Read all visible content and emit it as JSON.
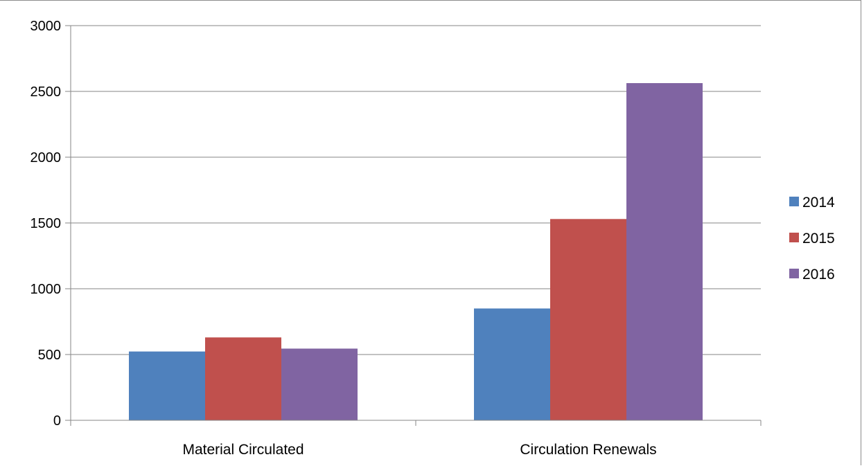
{
  "chart_data": {
    "type": "bar",
    "categories": [
      "Material Circulated",
      "Circulation Renewals"
    ],
    "series": [
      {
        "name": "2014",
        "color": "#4f81bd",
        "values": [
          523,
          850
        ]
      },
      {
        "name": "2015",
        "color": "#c0504d",
        "values": [
          630,
          1530
        ]
      },
      {
        "name": "2016",
        "color": "#8064a2",
        "values": [
          545,
          2563
        ]
      }
    ],
    "title": "",
    "xlabel": "",
    "ylabel": "",
    "ylim": [
      0,
      3000
    ],
    "yticks": [
      "0",
      "500",
      "1000",
      "1500",
      "2000",
      "2500",
      "3000"
    ],
    "grid": true,
    "legend_position": "right"
  }
}
